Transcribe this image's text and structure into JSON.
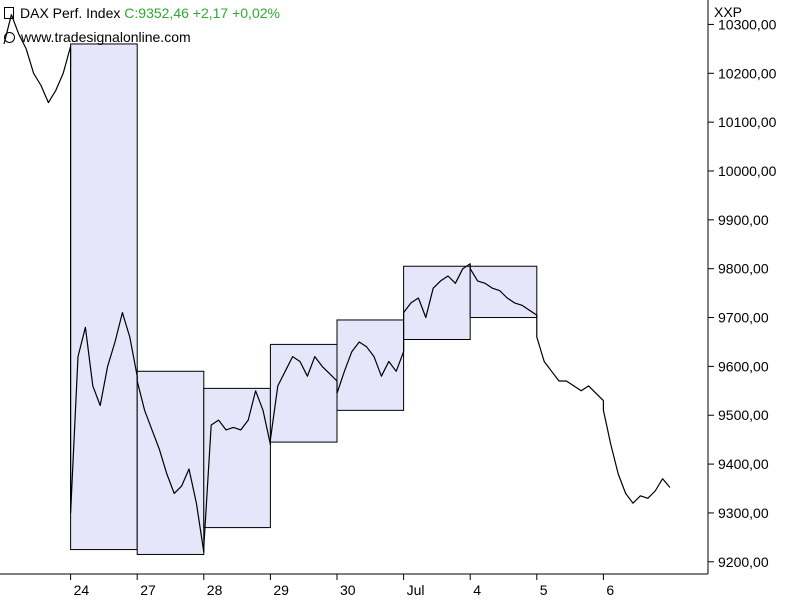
{
  "header": {
    "instrument": "DAX Perf. Index",
    "quote": "C:9352,46 +2,17 +0,02%",
    "website": "www.tradesignalonline.com",
    "symbol": "XXP"
  },
  "colors": {
    "line": "#000000",
    "box_fill": "#e6e6fa",
    "box_stroke": "#000000",
    "quote": "#2eaa2e"
  },
  "chart_data": {
    "type": "line",
    "ylim": [
      9175,
      10350
    ],
    "yticks": [
      9200,
      9300,
      9400,
      9500,
      9600,
      9700,
      9800,
      9900,
      10000,
      10100,
      10200,
      10300
    ],
    "ytick_labels": [
      "9200,00",
      "9300,00",
      "9400,00",
      "9500,00",
      "9600,00",
      "9700,00",
      "9800,00",
      "9900,00",
      "10000,00",
      "10100,00",
      "10200,00",
      "10300,00"
    ],
    "xtick_labels": [
      "24",
      "27",
      "28",
      "29",
      "30",
      "Jul",
      "4",
      "5",
      "6"
    ],
    "session_ranges": [
      {
        "label": "24",
        "high": 10260,
        "low": 9225
      },
      {
        "label": "27",
        "high": 9590,
        "low": 9215
      },
      {
        "label": "28",
        "high": 9555,
        "low": 9270
      },
      {
        "label": "29",
        "high": 9645,
        "low": 9445
      },
      {
        "label": "30",
        "high": 9695,
        "low": 9510
      },
      {
        "label": "Jul",
        "high": 9805,
        "low": 9655
      },
      {
        "label": "4",
        "high": 9805,
        "low": 9700
      }
    ],
    "series": [
      {
        "points": [
          [
            0,
            10260
          ],
          [
            1,
            10320
          ],
          [
            2,
            10280
          ],
          [
            3,
            10250
          ],
          [
            4,
            10200
          ],
          [
            5,
            10175
          ],
          [
            6,
            10140
          ],
          [
            7,
            10165
          ],
          [
            8,
            10200
          ],
          [
            9,
            10255
          ],
          [
            9,
            9300
          ],
          [
            10,
            9620
          ],
          [
            11,
            9680
          ],
          [
            12,
            9560
          ],
          [
            13,
            9520
          ],
          [
            14,
            9600
          ],
          [
            15,
            9650
          ],
          [
            16,
            9710
          ],
          [
            17,
            9660
          ],
          [
            18,
            9580
          ],
          [
            18,
            9570
          ],
          [
            19,
            9510
          ],
          [
            20,
            9470
          ],
          [
            21,
            9430
          ],
          [
            22,
            9380
          ],
          [
            23,
            9340
          ],
          [
            24,
            9355
          ],
          [
            25,
            9390
          ],
          [
            26,
            9320
          ],
          [
            27,
            9220
          ],
          [
            27,
            9230
          ],
          [
            28,
            9480
          ],
          [
            29,
            9490
          ],
          [
            30,
            9470
          ],
          [
            31,
            9475
          ],
          [
            32,
            9470
          ],
          [
            33,
            9490
          ],
          [
            34,
            9550
          ],
          [
            35,
            9510
          ],
          [
            36,
            9440
          ],
          [
            36,
            9450
          ],
          [
            37,
            9560
          ],
          [
            38,
            9590
          ],
          [
            39,
            9620
          ],
          [
            40,
            9610
          ],
          [
            41,
            9580
          ],
          [
            42,
            9620
          ],
          [
            43,
            9600
          ],
          [
            44,
            9585
          ],
          [
            45,
            9570
          ],
          [
            45,
            9545
          ],
          [
            46,
            9590
          ],
          [
            47,
            9630
          ],
          [
            48,
            9650
          ],
          [
            49,
            9640
          ],
          [
            50,
            9620
          ],
          [
            51,
            9580
          ],
          [
            52,
            9610
          ],
          [
            53,
            9590
          ],
          [
            54,
            9630
          ],
          [
            54,
            9710
          ],
          [
            55,
            9730
          ],
          [
            56,
            9740
          ],
          [
            57,
            9700
          ],
          [
            58,
            9760
          ],
          [
            59,
            9775
          ],
          [
            60,
            9785
          ],
          [
            61,
            9770
          ],
          [
            62,
            9800
          ],
          [
            63,
            9810
          ],
          [
            63,
            9800
          ],
          [
            64,
            9775
          ],
          [
            65,
            9770
          ],
          [
            66,
            9760
          ],
          [
            67,
            9755
          ],
          [
            68,
            9740
          ],
          [
            69,
            9730
          ],
          [
            70,
            9725
          ],
          [
            71,
            9715
          ],
          [
            72,
            9705
          ],
          [
            72,
            9660
          ],
          [
            73,
            9610
          ],
          [
            74,
            9590
          ],
          [
            75,
            9570
          ],
          [
            76,
            9570
          ],
          [
            77,
            9560
          ],
          [
            78,
            9550
          ],
          [
            79,
            9560
          ],
          [
            80,
            9545
          ],
          [
            81,
            9530
          ],
          [
            81,
            9510
          ],
          [
            82,
            9440
          ],
          [
            83,
            9380
          ],
          [
            84,
            9340
          ],
          [
            85,
            9320
          ],
          [
            86,
            9335
          ],
          [
            87,
            9330
          ],
          [
            88,
            9345
          ],
          [
            89,
            9370
          ],
          [
            90,
            9352
          ]
        ]
      }
    ]
  }
}
